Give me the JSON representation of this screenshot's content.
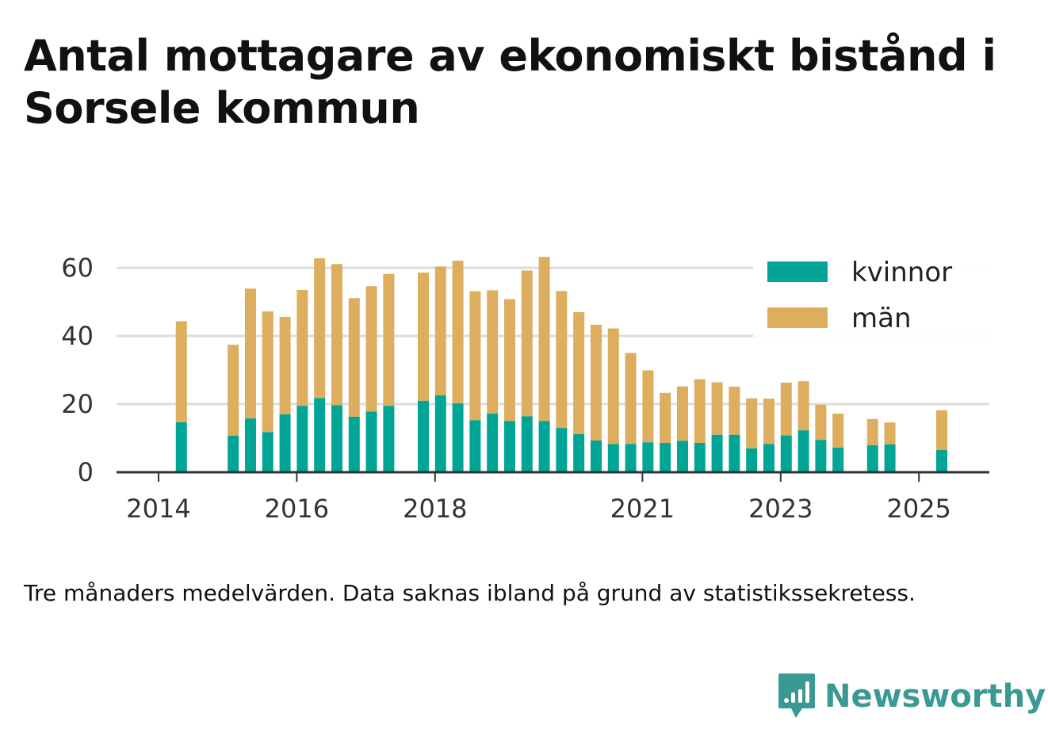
{
  "title": "Antal mottagare av ekonomiskt bistånd i Sorsele kommun",
  "footnote": "Tre månaders medelvärden. Data saknas ibland på grund av statistikssekretess.",
  "brand": {
    "name": "Newsworthy",
    "icon": "newsworthy-logo-icon",
    "color": "#3a9a93"
  },
  "colors": {
    "kvinnor": "#00a596",
    "man": "#dcae5d",
    "grid": "#dddddd",
    "axis": "#333333"
  },
  "chart_data": {
    "type": "bar",
    "stacked": true,
    "title": "Antal mottagare av ekonomiskt bistånd i Sorsele kommun",
    "xlabel": "",
    "ylabel": "",
    "ylim": [
      0,
      65
    ],
    "yticks": [
      0,
      20,
      40,
      60
    ],
    "xtick_labels": [
      "2014",
      "2016",
      "2018",
      "2021",
      "2023",
      "2025"
    ],
    "xticks": [
      2014.0,
      2016.0,
      2018.0,
      2021.0,
      2023.0,
      2025.0
    ],
    "legend_position": "top-right",
    "grid": true,
    "x": [
      2014.33,
      2015.08,
      2015.33,
      2015.58,
      2015.83,
      2016.08,
      2016.33,
      2016.58,
      2016.83,
      2017.08,
      2017.33,
      2017.83,
      2018.08,
      2018.33,
      2018.58,
      2018.83,
      2019.08,
      2019.33,
      2019.58,
      2019.83,
      2020.08,
      2020.33,
      2020.58,
      2020.83,
      2021.08,
      2021.33,
      2021.58,
      2021.83,
      2022.08,
      2022.33,
      2022.58,
      2022.83,
      2023.08,
      2023.33,
      2023.58,
      2023.83,
      2024.33,
      2024.58,
      2025.33
    ],
    "series": [
      {
        "name": "kvinnor",
        "color": "#00a596",
        "values": [
          14.7,
          10.7,
          15.8,
          11.8,
          17.0,
          19.5,
          21.8,
          19.7,
          16.3,
          17.8,
          19.5,
          21.0,
          22.6,
          20.2,
          15.3,
          17.2,
          15.0,
          16.4,
          15.0,
          13.0,
          11.2,
          9.3,
          8.3,
          8.3,
          8.8,
          8.6,
          9.2,
          8.6,
          11.0,
          11.0,
          7.0,
          8.3,
          10.8,
          12.3,
          9.5,
          7.2,
          7.9,
          8.2,
          6.5
        ]
      },
      {
        "name": "män",
        "color": "#dcae5d",
        "values": [
          29.6,
          26.7,
          38.1,
          35.4,
          28.6,
          34.0,
          41.0,
          41.4,
          34.8,
          36.8,
          38.7,
          37.6,
          37.8,
          41.9,
          37.8,
          36.2,
          35.8,
          42.8,
          48.2,
          40.2,
          35.8,
          34.0,
          33.9,
          26.7,
          21.1,
          14.7,
          16.0,
          18.7,
          15.4,
          14.1,
          14.7,
          13.3,
          15.5,
          14.4,
          10.3,
          10.0,
          7.7,
          6.4,
          11.7
        ]
      }
    ]
  }
}
